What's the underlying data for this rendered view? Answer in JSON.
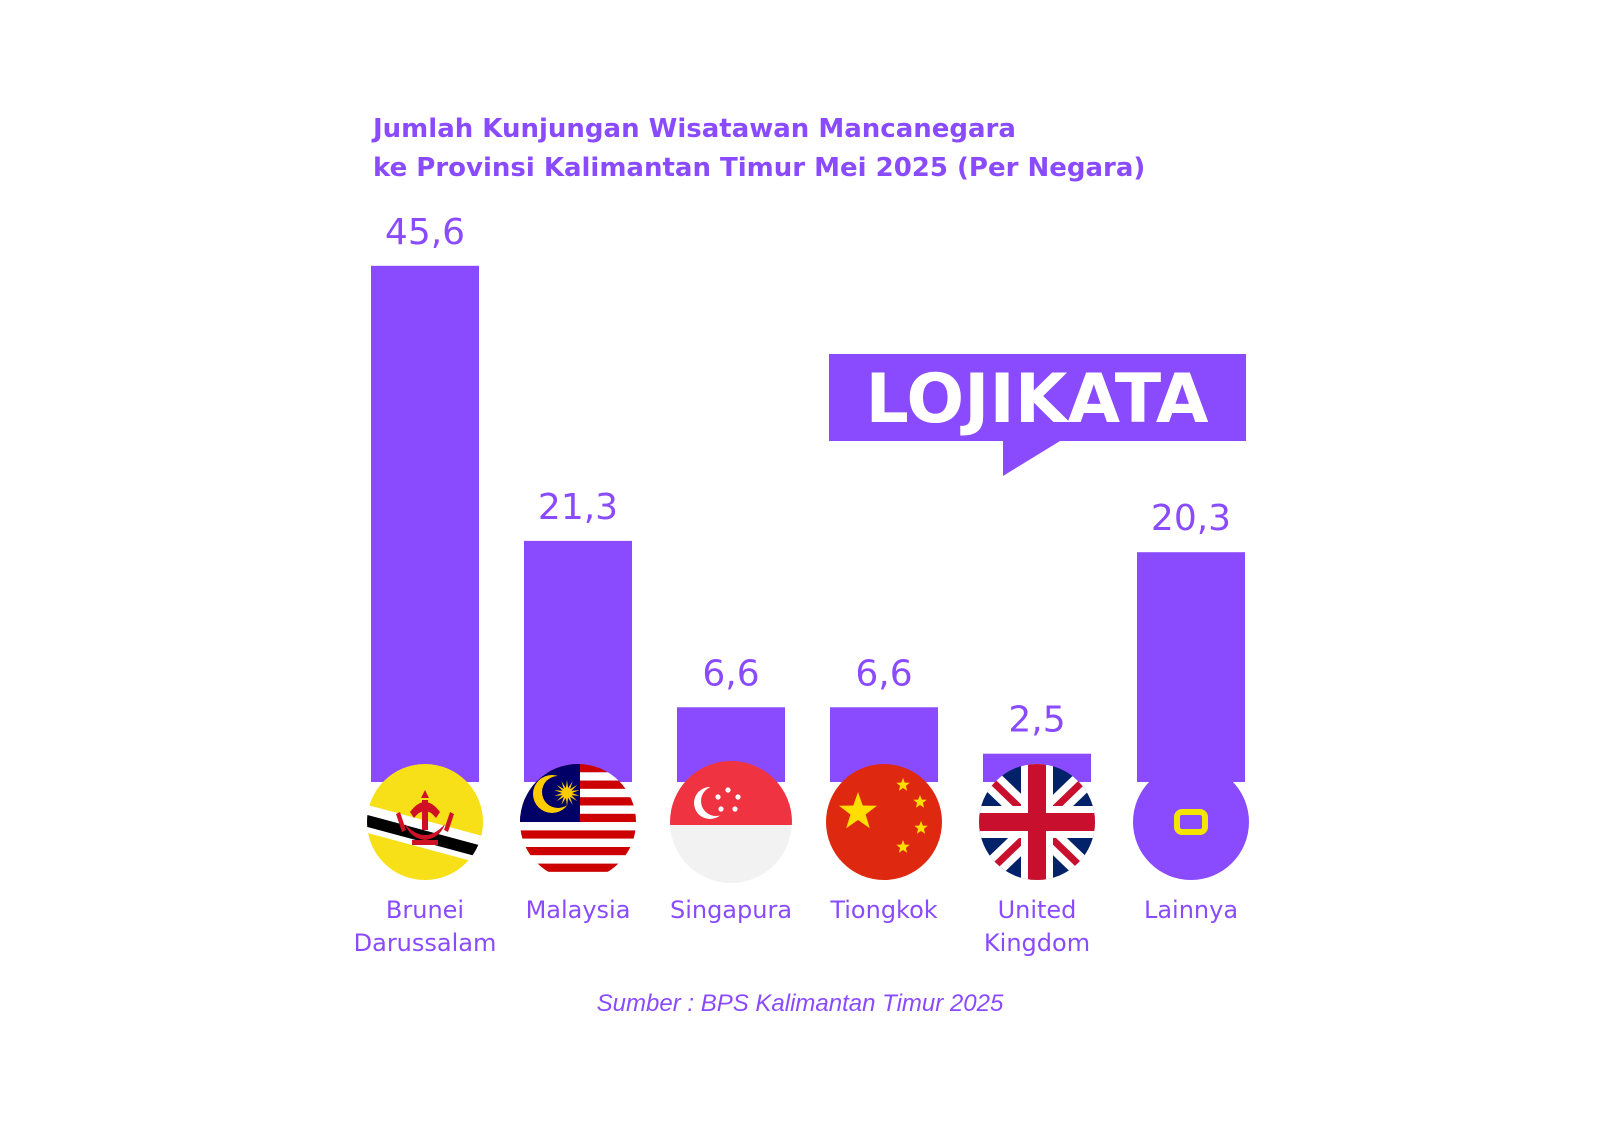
{
  "title_lines": [
    "Jumlah Kunjungan Wisatawan Mancanegara",
    "ke Provinsi Kalimantan Timur Mei 2025 (Per Negara)"
  ],
  "source": "Sumber : BPS Kalimantan Timur 2025",
  "brand": {
    "logo_text": "LOJIKATA",
    "primary_color": "#8a4bff",
    "accent_color": "#f5e400"
  },
  "chart_data": {
    "type": "bar",
    "title": "Jumlah Kunjungan Wisatawan Mancanegara ke Provinsi Kalimantan Timur Mei 2025 (Per Negara)",
    "categories": [
      "Brunei Darussalam",
      "Malaysia",
      "Singapura",
      "Tiongkok",
      "United Kingdom",
      "Lainnya"
    ],
    "category_lines": [
      [
        "Brunei",
        "Darussalam"
      ],
      [
        "Malaysia"
      ],
      [
        "Singapura"
      ],
      [
        "Tiongkok"
      ],
      [
        "United",
        "Kingdom"
      ],
      [
        "Lainnya"
      ]
    ],
    "values": [
      45.6,
      21.3,
      6.6,
      6.6,
      2.5,
      20.3
    ],
    "value_labels": [
      "45,6",
      "21,3",
      "6,6",
      "6,6",
      "2,5",
      "20,3"
    ],
    "icons": [
      "brunei-flag-icon",
      "malaysia-flag-icon",
      "singapore-flag-icon",
      "china-flag-icon",
      "uk-flag-icon",
      "lojikata-o-icon"
    ],
    "bar_color": "#8a4bff",
    "grid": false,
    "legend": "none"
  }
}
